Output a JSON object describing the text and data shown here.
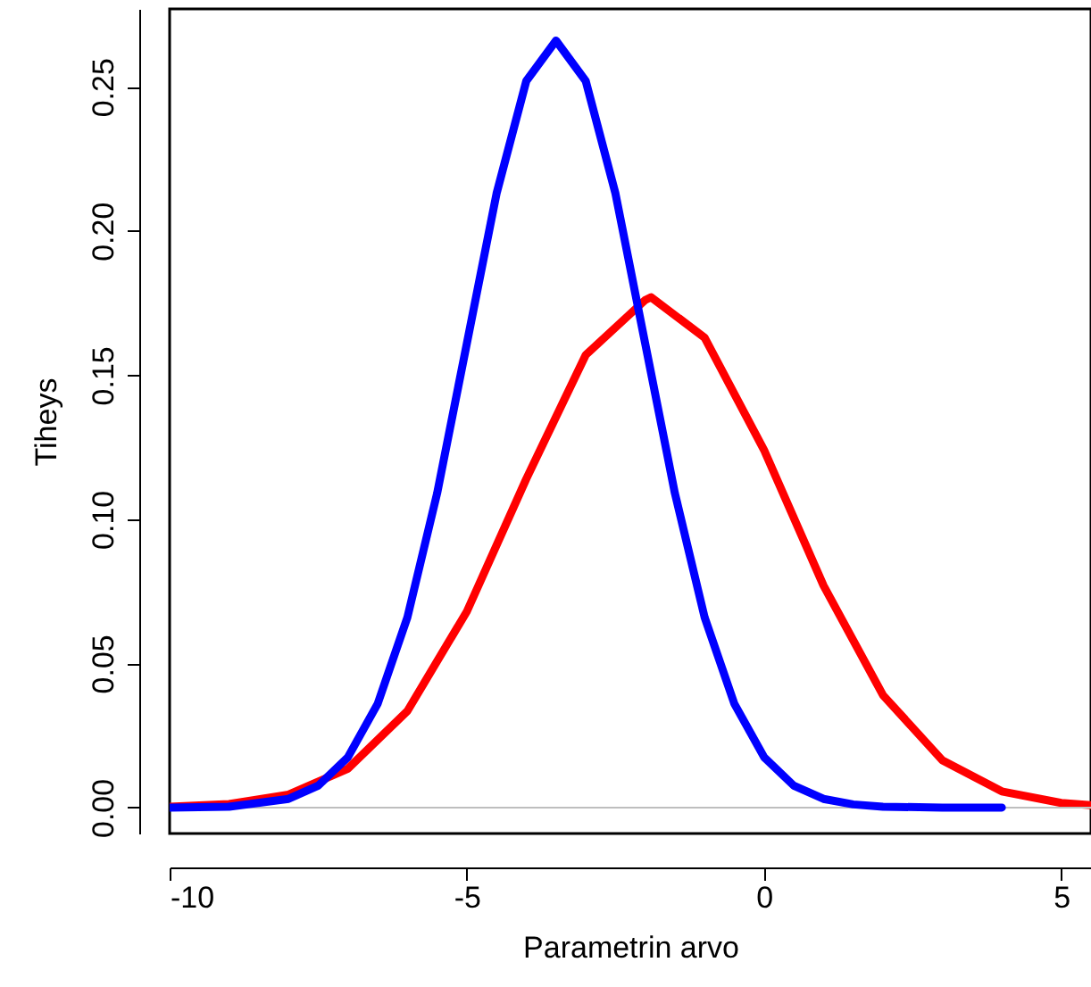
{
  "chart_data": {
    "type": "line",
    "xlabel": "Parametrin arvo",
    "ylabel": "Tiheys",
    "xlim": [
      -10,
      5.5
    ],
    "ylim": [
      -0.009,
      0.277
    ],
    "xticks": [
      -10,
      -5,
      0,
      5
    ],
    "yticks": [
      {
        "value": 0,
        "label": "0.00"
      },
      0.05,
      {
        "value": 0.1,
        "label": "0.10"
      },
      0.15,
      {
        "value": 0.2,
        "label": "0.20"
      },
      0.25
    ],
    "grid": false,
    "line_style": "solid",
    "marker": "none",
    "ref_lines": [
      {
        "axis": "y",
        "value": 0,
        "color": "#bebebe"
      }
    ],
    "series": [
      {
        "color": "#ff0000",
        "x": [
          -10,
          -9,
          -8,
          -7,
          -6,
          -5,
          -4,
          -3,
          -2,
          -1.9,
          -1,
          0,
          1,
          2,
          3,
          4,
          5,
          5.5
        ],
        "values": [
          0.0003,
          0.0012,
          0.0045,
          0.0135,
          0.0335,
          0.068,
          0.114,
          0.157,
          0.176,
          0.177,
          0.163,
          0.124,
          0.077,
          0.039,
          0.0164,
          0.0056,
          0.0016,
          0.0008
        ]
      },
      {
        "color": "#0000ff",
        "x": [
          -10,
          -9,
          -8,
          -7.5,
          -7,
          -6.5,
          -6,
          -5.5,
          -5,
          -4.5,
          -4,
          -3.5,
          -3,
          -2.5,
          -2,
          -1.5,
          -1,
          -0.5,
          0,
          0.5,
          1,
          1.5,
          2,
          3,
          4
        ],
        "values": [
          0.0,
          0.0003,
          0.003,
          0.0076,
          0.0175,
          0.036,
          0.066,
          0.109,
          0.161,
          0.213,
          0.252,
          0.266,
          0.252,
          0.213,
          0.161,
          0.109,
          0.066,
          0.036,
          0.0175,
          0.0076,
          0.003,
          0.0011,
          0.0003,
          0.0,
          0.0
        ]
      }
    ]
  }
}
